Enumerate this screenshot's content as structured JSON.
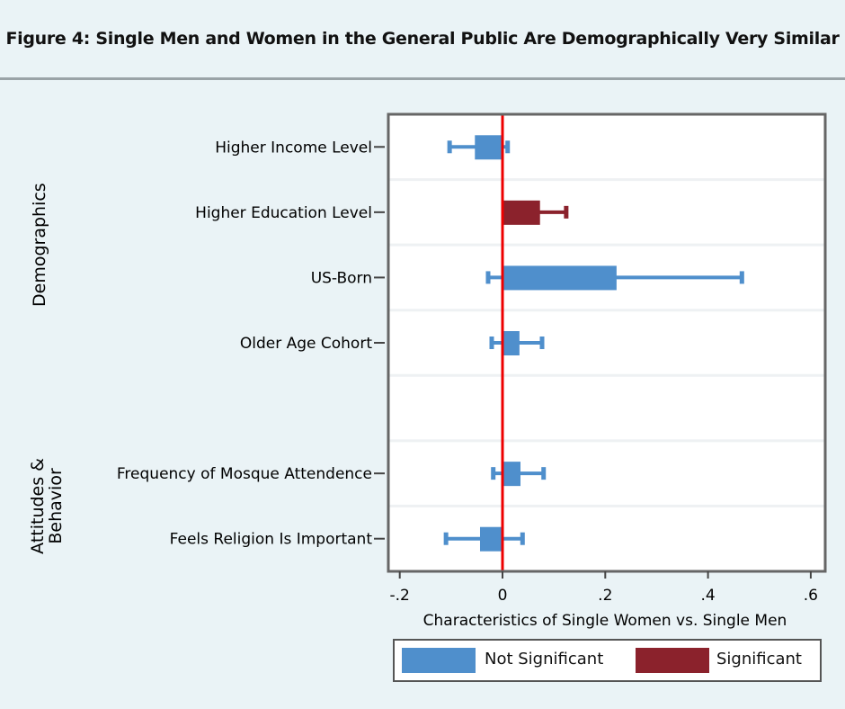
{
  "title": "Figure 4: Single Men and Women in the General Public Are Demographically Very Similar",
  "colors": {
    "not_significant": "#4f8fcc",
    "significant": "#8b222c",
    "zero_line": "#ee0000"
  },
  "chart_data": {
    "type": "bar",
    "subtype": "horizontal coefficient plot with confidence intervals",
    "xlabel": "Characteristics of Single Women vs. Single Men",
    "xlim": [
      -0.22,
      0.62
    ],
    "xticks": [
      -0.2,
      0,
      0.2,
      0.4,
      0.6
    ],
    "xtick_labels": [
      "-.2",
      "0",
      ".2",
      ".4",
      ".6"
    ],
    "groups": [
      {
        "name": "Demographics",
        "items": [
          {
            "label": "Higher Income Level",
            "value": -0.052,
            "ci": [
              -0.103,
              0.01
            ],
            "significant": false
          },
          {
            "label": "Higher Education Level",
            "value": 0.073,
            "ci": [
              0.02,
              0.124
            ],
            "significant": true
          },
          {
            "label": "US-Born",
            "value": 0.222,
            "ci": [
              -0.028,
              0.466
            ],
            "significant": false
          },
          {
            "label": "Older Age Cohort",
            "value": 0.033,
            "ci": [
              -0.021,
              0.077
            ],
            "significant": false
          }
        ]
      },
      {
        "name": "Attitudes & Behavior",
        "name_lines": [
          "Attitudes &",
          "Behavior"
        ],
        "items": [
          {
            "label": "Frequency of Mosque Attendence",
            "value": 0.035,
            "ci": [
              -0.018,
              0.08
            ],
            "significant": false
          },
          {
            "label": "Feels Religion Is Important",
            "value": -0.042,
            "ci": [
              -0.11,
              0.039
            ],
            "significant": false
          }
        ]
      }
    ],
    "legend": {
      "position": "bottom",
      "items": [
        "Not Significant",
        "Significant"
      ]
    },
    "grid": true
  }
}
